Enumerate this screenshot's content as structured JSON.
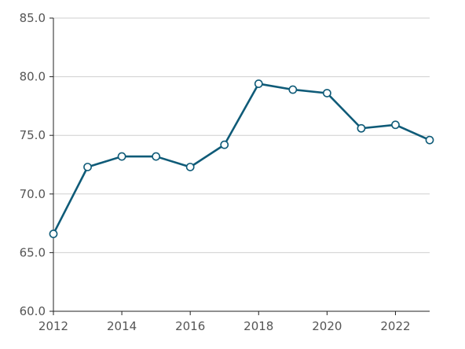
{
  "chart_data": {
    "type": "line",
    "title": "",
    "xlabel": "",
    "ylabel": "",
    "x": [
      2012,
      2013,
      2014,
      2015,
      2016,
      2017,
      2018,
      2019,
      2020,
      2021,
      2022,
      2023
    ],
    "series": [
      {
        "values": [
          66.6,
          72.3,
          73.2,
          73.2,
          72.3,
          74.2,
          79.4,
          78.9,
          78.6,
          75.6,
          75.9,
          74.6
        ]
      }
    ],
    "xlim": [
      2012,
      2023
    ],
    "ylim": [
      60,
      85
    ],
    "x_ticks": [
      "2012",
      "2014",
      "2016",
      "2018",
      "2020",
      "2022"
    ],
    "y_ticks": [
      "60.0",
      "65.0",
      "70.0",
      "75.0",
      "80.0",
      "85.0"
    ],
    "grid": "horizontal",
    "legend": "none",
    "line_color": "#0f5b78",
    "marker": "open-circle"
  }
}
